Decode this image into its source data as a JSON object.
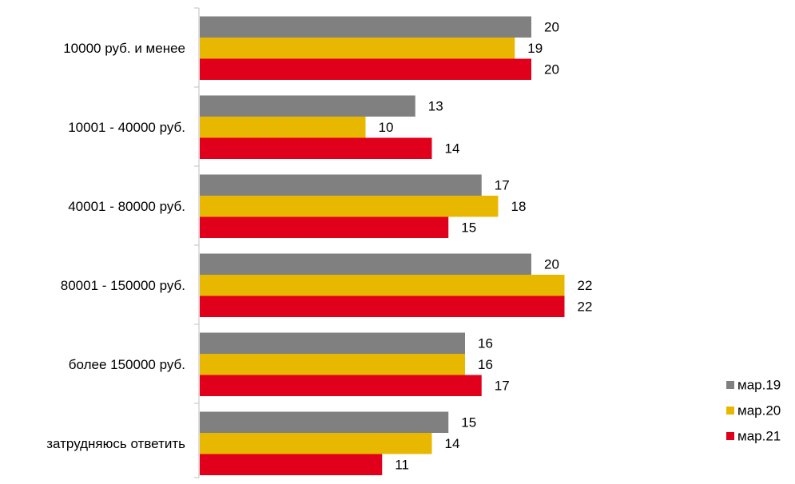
{
  "chart_data": {
    "type": "bar",
    "orientation": "horizontal",
    "categories": [
      "10000 руб. и менее",
      "10001 - 40000 руб.",
      "40001 - 80000 руб.",
      "80001 - 150000 руб.",
      "более 150000 руб.",
      "затрудняюсь ответить"
    ],
    "series": [
      {
        "name": "мар.19",
        "color": "#808080",
        "values": [
          20,
          13,
          17,
          20,
          16,
          15
        ]
      },
      {
        "name": "мар.20",
        "color": "#E8B800",
        "values": [
          19,
          10,
          18,
          22,
          16,
          14
        ]
      },
      {
        "name": "мар.21",
        "color": "#E0001B",
        "values": [
          20,
          14,
          15,
          22,
          17,
          11
        ]
      }
    ],
    "title": "",
    "xlabel": "",
    "ylabel": "",
    "xlim": [
      0,
      22.5
    ],
    "grid": false,
    "data_labels": true,
    "legend_position": "bottom-right"
  }
}
